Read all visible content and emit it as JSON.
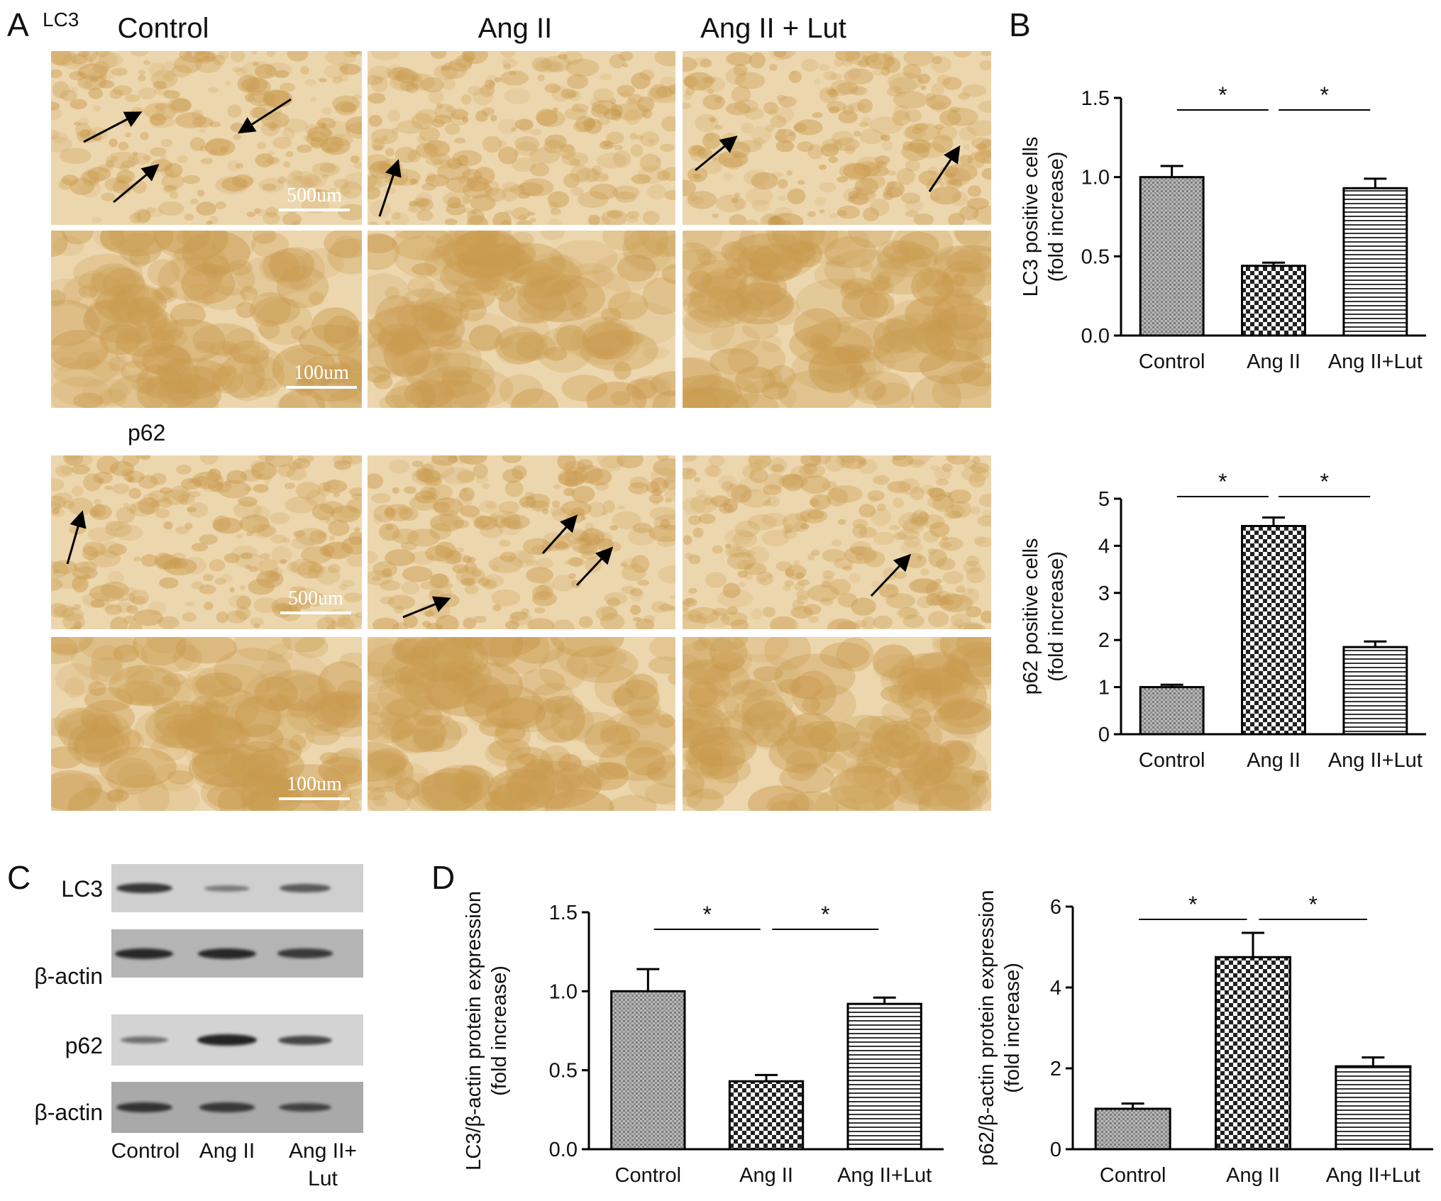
{
  "panels": {
    "a": "A",
    "b": "B",
    "c": "C",
    "d": "D"
  },
  "histology": {
    "lc3_tag": "LC3",
    "p62_tag": "p62",
    "columns": [
      "Control",
      "Ang II",
      "Ang II + Lut"
    ],
    "scale_low": "500um",
    "scale_high": "100um",
    "stain_color": "#c99a4e",
    "background_color": "#ecd6ad"
  },
  "western": {
    "row_labels": [
      "LC3",
      "β-actin",
      "p62",
      "β-actin"
    ],
    "lanes": [
      "Control",
      "Ang II",
      "Ang II+",
      "Lut"
    ],
    "band_intensity": {
      "LC3": [
        0.8,
        0.3,
        0.55
      ],
      "beta_actin_1": [
        0.9,
        0.9,
        0.75
      ],
      "p62": [
        0.4,
        0.95,
        0.7
      ],
      "beta_actin_2": [
        0.8,
        0.75,
        0.65
      ]
    }
  },
  "significance_mark": "*",
  "chart_data": [
    {
      "id": "b-top",
      "type": "bar",
      "categories": [
        "Control",
        "Ang II",
        "Ang II+Lut"
      ],
      "values": [
        1.0,
        0.44,
        0.93
      ],
      "errors": [
        0.07,
        0.02,
        0.06
      ],
      "ylabel": [
        "LC3 positive cells",
        "(fold increase)"
      ],
      "yticks": [
        "0.0",
        "0.5",
        "1.0",
        "1.5"
      ],
      "ylim": [
        0,
        1.5
      ],
      "patterns": [
        "dots-gray",
        "checker",
        "hlines"
      ],
      "significance": [
        [
          0,
          1
        ],
        [
          1,
          2
        ]
      ]
    },
    {
      "id": "b-bottom",
      "type": "bar",
      "categories": [
        "Control",
        "Ang II",
        "Ang II+Lut"
      ],
      "values": [
        1.0,
        4.42,
        1.85
      ],
      "errors": [
        0.05,
        0.18,
        0.12
      ],
      "ylabel": [
        "p62 positive cells",
        "(fold increase)"
      ],
      "yticks": [
        "0",
        "1",
        "2",
        "3",
        "4",
        "5"
      ],
      "ylim": [
        0,
        5
      ],
      "patterns": [
        "dots-gray",
        "checker",
        "hlines"
      ],
      "significance": [
        [
          0,
          1
        ],
        [
          1,
          2
        ]
      ]
    },
    {
      "id": "d-left",
      "type": "bar",
      "categories": [
        "Control",
        "Ang II",
        "Ang II+Lut"
      ],
      "values": [
        1.0,
        0.43,
        0.92
      ],
      "errors": [
        0.14,
        0.04,
        0.04
      ],
      "ylabel": [
        "LC3/β-actin protein expression",
        "(fold increase)"
      ],
      "yticks": [
        "0.0",
        "0.5",
        "1.0",
        "1.5"
      ],
      "ylim": [
        0,
        1.5
      ],
      "patterns": [
        "dots-gray",
        "checker",
        "hlines"
      ],
      "significance": [
        [
          0,
          1
        ],
        [
          1,
          2
        ]
      ]
    },
    {
      "id": "d-right",
      "type": "bar",
      "categories": [
        "Control",
        "Ang II",
        "Ang II+Lut"
      ],
      "values": [
        1.0,
        4.75,
        2.05
      ],
      "errors": [
        0.13,
        0.6,
        0.22
      ],
      "ylabel": [
        "p62/β-actin protein expression",
        "(fold increase)"
      ],
      "yticks": [
        "0",
        "2",
        "4",
        "6"
      ],
      "ylim": [
        0,
        6
      ],
      "patterns": [
        "dots-gray",
        "checker",
        "hlines"
      ],
      "significance": [
        [
          0,
          1
        ],
        [
          1,
          2
        ]
      ]
    }
  ]
}
